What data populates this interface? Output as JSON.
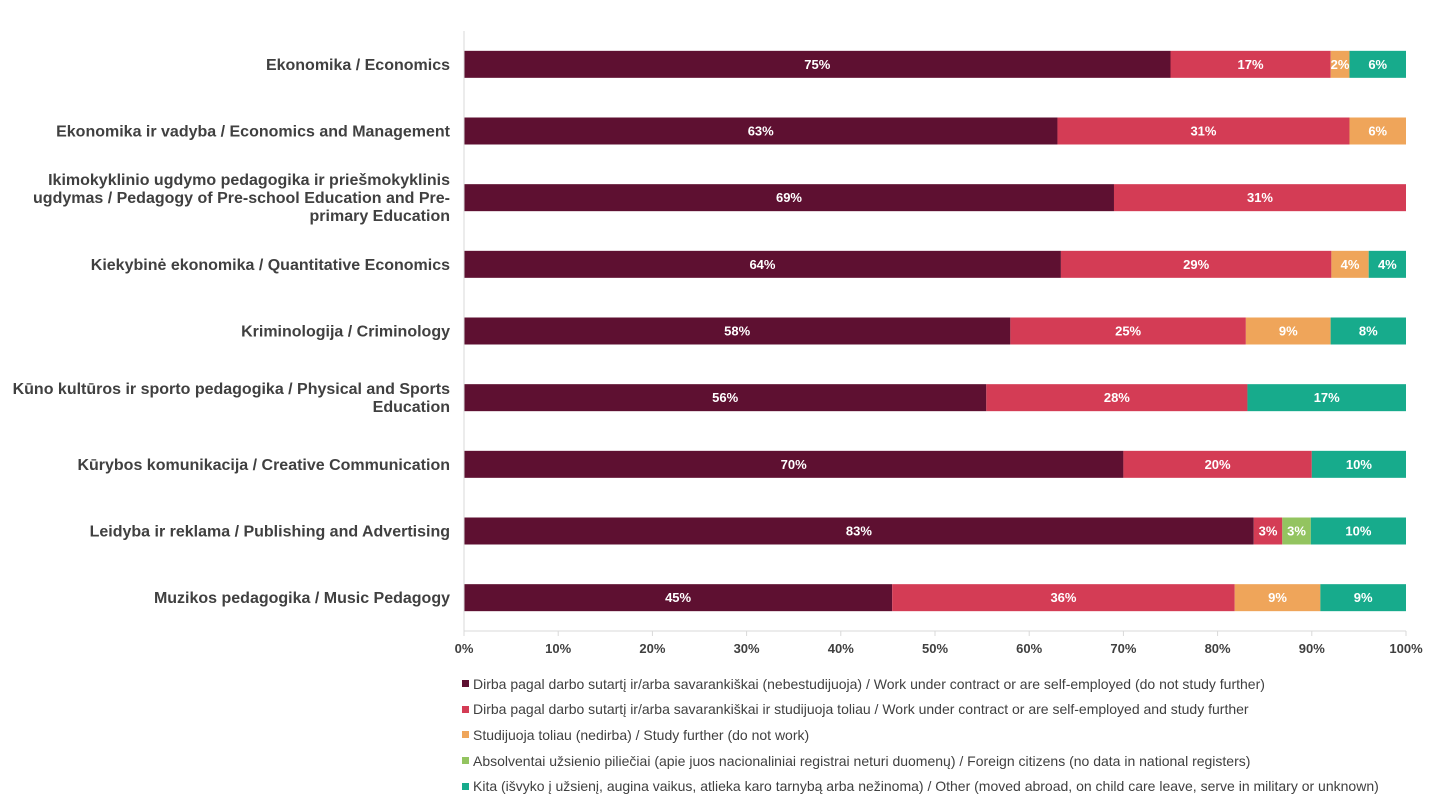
{
  "chart_data": {
    "type": "bar",
    "orientation": "horizontal",
    "stacked": "percent",
    "title": "",
    "xlabel": "",
    "ylabel": "",
    "xlim": [
      0,
      100
    ],
    "x_ticks": [
      "0%",
      "10%",
      "20%",
      "30%",
      "40%",
      "50%",
      "60%",
      "70%",
      "80%",
      "90%",
      "100%"
    ],
    "grid": false,
    "legend_position": "bottom",
    "categories": [
      "Ekonomika / Economics",
      "Ekonomika ir vadyba / Economics and Management",
      "Ikimokyklinio ugdymo pedagogika ir priešmokyklinis ugdymas / Pedagogy of Pre-school Education and Pre-primary Education",
      "Kiekybinė ekonomika / Quantitative Economics",
      "Kriminologija / Criminology",
      "Kūno kultūros ir sporto pedagogika / Physical and Sports Education",
      "Kūrybos komunikacija / Creative Communication",
      "Leidyba ir reklama / Publishing and Advertising",
      "Muzikos pedagogika / Music Pedagogy"
    ],
    "category_label_lines": [
      [
        "Ekonomika / Economics"
      ],
      [
        "Ekonomika ir vadyba / Economics and Management"
      ],
      [
        "Ikimokyklinio ugdymo pedagogika ir priešmokyklinis",
        "ugdymas / Pedagogy of Pre-school Education and Pre-",
        "primary Education"
      ],
      [
        "Kiekybinė ekonomika / Quantitative Economics"
      ],
      [
        "Kriminologija / Criminology"
      ],
      [
        "Kūno kultūros ir sporto pedagogika / Physical and Sports",
        "Education"
      ],
      [
        "Kūrybos komunikacija / Creative Communication"
      ],
      [
        "Leidyba ir reklama / Publishing and Advertising"
      ],
      [
        "Muzikos pedagogika / Music Pedagogy"
      ]
    ],
    "series": [
      {
        "name": "Dirba pagal darbo sutartį ir/arba savarankiškai (nebestudijuoja) / Work under contract or are self-employed (do not study further)",
        "color": "#5e1031",
        "values": [
          75,
          63,
          69,
          64,
          58,
          56,
          70,
          83,
          45
        ]
      },
      {
        "name": "Dirba pagal darbo sutartį ir/arba savarankiškai  ir studijuoja toliau / Work under contract or are self-employed and study further",
        "color": "#d43c55",
        "values": [
          17,
          31,
          31,
          29,
          25,
          28,
          20,
          3,
          36
        ]
      },
      {
        "name": "Studijuoja toliau (nedirba) / Study further (do not work)",
        "color": "#efa55a",
        "values": [
          2,
          6,
          0,
          4,
          9,
          0,
          0,
          0,
          9
        ]
      },
      {
        "name": "Absolventai užsienio piliečiai (apie juos nacionaliniai registrai neturi duomenų) / Foreign citizens (no data in national registers)",
        "color": "#93c460",
        "values": [
          0,
          0,
          0,
          0,
          0,
          0,
          0,
          3,
          0
        ]
      },
      {
        "name": "Kita (išvyko į užsienį, augina vaikus, atlieka karo tarnybą arba nežinoma) / Other (moved abroad, on child care leave, serve in military or unknown)",
        "color": "#17ab8c",
        "values": [
          6,
          0,
          0,
          4,
          8,
          17,
          10,
          10,
          9
        ]
      }
    ]
  }
}
